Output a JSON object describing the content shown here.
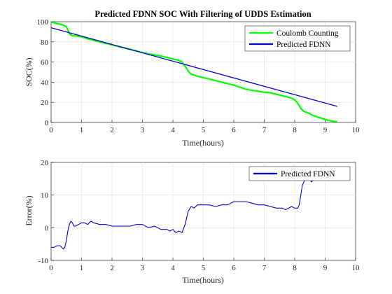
{
  "chart_data": [
    {
      "type": "line",
      "title": "Predicted FDNN SOC With Filtering of UDDS Estimation",
      "xlabel": "Time(hours)",
      "ylabel": "SOC(%)",
      "xlim": [
        0,
        10
      ],
      "ylim": [
        0,
        100
      ],
      "xticks": [
        "0",
        "1",
        "2",
        "3",
        "4",
        "5",
        "6",
        "7",
        "8",
        "9",
        "10"
      ],
      "yticks": [
        "0",
        "20",
        "40",
        "60",
        "80",
        "100"
      ],
      "grid": true,
      "legend_position": "top-right",
      "series": [
        {
          "name": "Coulomb Counting",
          "color": "#00ff00",
          "x": [
            0,
            0.1,
            0.2,
            0.3,
            0.4,
            0.5,
            0.55,
            0.6,
            0.7,
            0.8,
            0.9,
            1.0,
            1.2,
            1.4,
            1.6,
            1.8,
            2.0,
            2.2,
            2.4,
            2.6,
            2.8,
            3.0,
            3.2,
            3.4,
            3.6,
            3.8,
            4.0,
            4.2,
            4.3,
            4.4,
            4.5,
            4.6,
            4.8,
            5.0,
            5.2,
            5.4,
            5.6,
            5.8,
            6.0,
            6.2,
            6.4,
            6.6,
            6.8,
            7.0,
            7.2,
            7.4,
            7.6,
            7.8,
            7.9,
            8.0,
            8.1,
            8.2,
            8.3,
            8.4,
            8.5,
            8.6,
            8.7,
            8.8,
            8.9,
            9.0,
            9.1,
            9.2,
            9.3,
            9.4
          ],
          "y": [
            99.5,
            99,
            98,
            97.5,
            96.5,
            95,
            92,
            88,
            86,
            86,
            85.5,
            85,
            83,
            81.5,
            80,
            78.5,
            77,
            75.5,
            74,
            72.5,
            71,
            69.5,
            68,
            67,
            66,
            64.5,
            63,
            61.5,
            60,
            56,
            51,
            48,
            46,
            44.5,
            43,
            41.5,
            40,
            38.5,
            37,
            35,
            33,
            32,
            31,
            30,
            29.5,
            28,
            26.5,
            25,
            24,
            22.5,
            19,
            14,
            11,
            10,
            8.5,
            7,
            6,
            5,
            4,
            3,
            2.2,
            1.5,
            1,
            0.8
          ]
        },
        {
          "name": "Predicted FDNN",
          "color": "#0000cc",
          "x": [
            0,
            9.4
          ],
          "y": [
            94,
            16
          ]
        }
      ]
    },
    {
      "type": "line",
      "title": "",
      "xlabel": "Time(hours)",
      "ylabel": "Error(%)",
      "xlim": [
        0,
        10
      ],
      "ylim": [
        -10,
        20
      ],
      "xticks": [
        "0",
        "1",
        "2",
        "3",
        "4",
        "5",
        "6",
        "7",
        "8",
        "9",
        "10"
      ],
      "yticks": [
        "-10",
        "0",
        "10",
        "20"
      ],
      "grid": true,
      "legend_position": "top-right",
      "series": [
        {
          "name": "Predicted FDNN",
          "color": "#0000cc",
          "x": [
            0,
            0.1,
            0.2,
            0.3,
            0.4,
            0.45,
            0.5,
            0.55,
            0.6,
            0.65,
            0.7,
            0.75,
            0.8,
            0.9,
            1.0,
            1.1,
            1.2,
            1.3,
            1.4,
            1.6,
            1.8,
            2.0,
            2.2,
            2.4,
            2.6,
            2.8,
            3.0,
            3.2,
            3.4,
            3.6,
            3.8,
            3.9,
            4.0,
            4.1,
            4.2,
            4.3,
            4.4,
            4.5,
            4.6,
            4.7,
            4.8,
            5.0,
            5.2,
            5.4,
            5.6,
            5.8,
            6.0,
            6.2,
            6.4,
            6.6,
            6.8,
            7.0,
            7.2,
            7.4,
            7.6,
            7.7,
            7.8,
            7.9,
            8.0,
            8.1,
            8.15,
            8.2,
            8.25,
            8.3,
            8.35,
            8.4,
            8.45,
            8.5,
            8.55,
            8.6
          ],
          "y": [
            -6,
            -6,
            -5.5,
            -5.5,
            -6.5,
            -6,
            -4,
            -1,
            1,
            2,
            1.5,
            0.5,
            0.5,
            1,
            1.5,
            1.5,
            1,
            2,
            1.5,
            1,
            1,
            0.5,
            0.5,
            0.5,
            0.5,
            1,
            1,
            0,
            0.5,
            -0.5,
            -0.5,
            -1,
            -0.5,
            -1.5,
            -1,
            -1.5,
            1,
            5,
            6.5,
            6,
            7,
            7,
            7,
            6.5,
            7,
            7,
            8,
            8,
            8,
            7.5,
            7,
            7,
            6.5,
            6,
            6,
            5.5,
            6,
            6.5,
            6,
            6,
            7,
            10,
            13,
            14,
            15,
            15.5,
            14.5,
            15.5,
            14,
            14.5
          ]
        }
      ]
    }
  ]
}
